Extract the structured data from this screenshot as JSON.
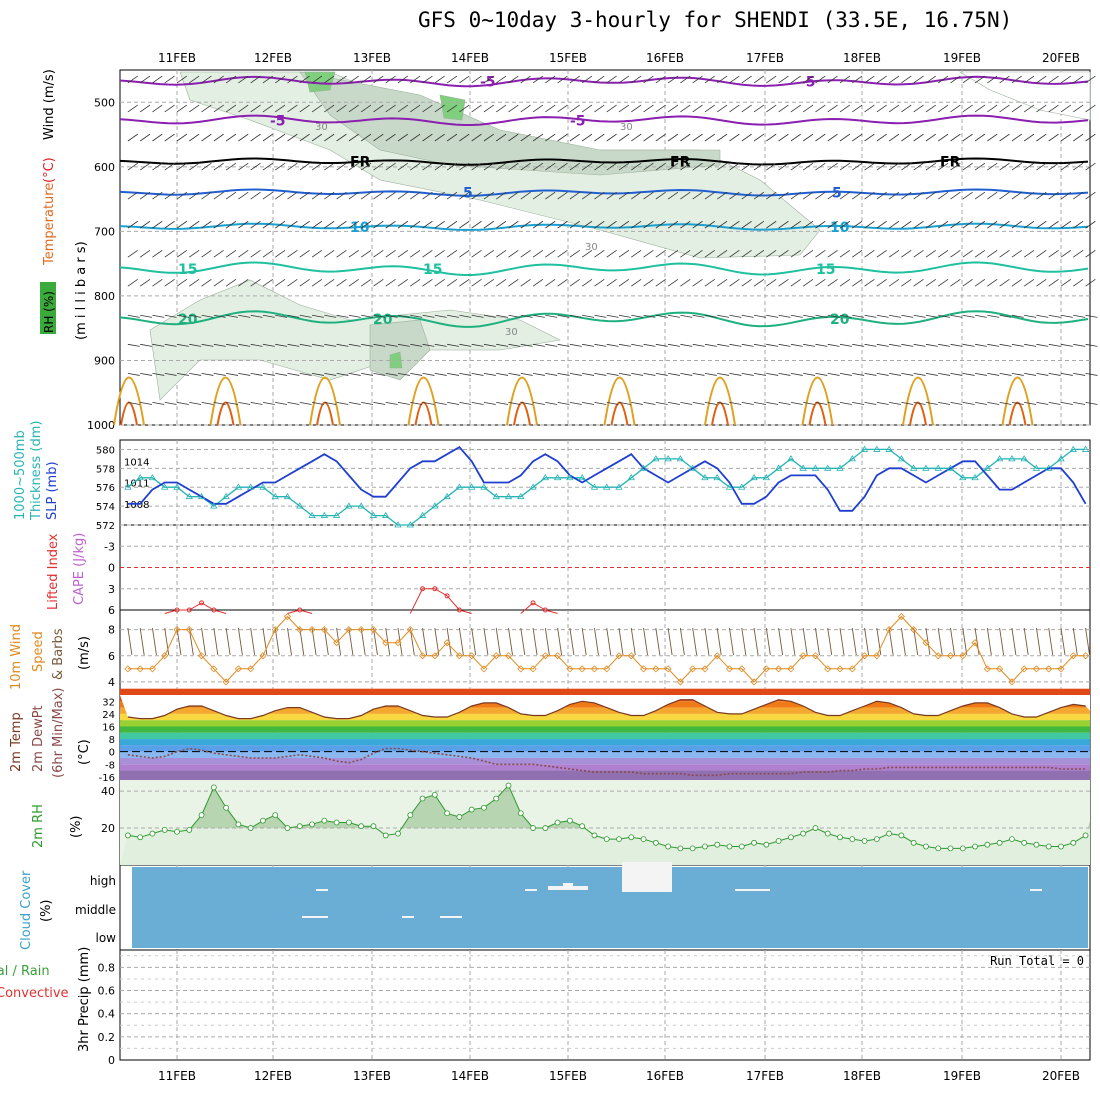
{
  "title": "GFS 0~10day 3-hourly for SHENDI (33.5E, 16.75N)",
  "date_labels": [
    "11FEB",
    "12FEB",
    "13FEB",
    "14FEB",
    "15FEB",
    "16FEB",
    "17FEB",
    "18FEB",
    "19FEB",
    "20FEB"
  ],
  "colors": {
    "bg": "#ffffff",
    "grid": "#aaaaaa",
    "cloud": "#6aaed6",
    "slp": "#1f3fcf",
    "thickness": "#27b4b4",
    "rh": "#2e9a2e",
    "wind": "#e08a1e",
    "li": "#e03030",
    "dewpt": "#8a4a4a"
  },
  "panels": {
    "upper": {
      "labels": {
        "rh": "RH (%)",
        "temperature": "Temperature",
        "temp_unit": "(°C)",
        "wind": "Wind (m/s)",
        "millibars": "(m i l l i b a r s)"
      },
      "ticks": [
        "500",
        "600",
        "700",
        "800",
        "900",
        "1000"
      ],
      "contours": {
        "purple": [
          {
            "text": "-5"
          },
          {
            "text": "-5"
          }
        ],
        "fr": [
          {
            "text": "FR"
          },
          {
            "text": "FR"
          },
          {
            "text": "FR"
          }
        ],
        "blue": [
          {
            "text": "5"
          },
          {
            "text": "5"
          }
        ],
        "c10": [
          {
            "text": "10"
          },
          {
            "text": "10"
          }
        ],
        "c15": [
          {
            "text": "15"
          },
          {
            "text": "15"
          },
          {
            "text": "15"
          }
        ],
        "c20": [
          {
            "text": "20"
          },
          {
            "text": "20"
          },
          {
            "text": "20"
          }
        ],
        "rh30": [
          {
            "text": "30"
          },
          {
            "text": "30"
          },
          {
            "text": "30"
          },
          {
            "text": "30"
          }
        ]
      }
    },
    "slp": {
      "labels": {
        "thickness": "1000~500mb",
        "thickness2": "Thickness (dm)",
        "slp": "SLP (mb)"
      },
      "ticks_left": [
        "580",
        "578",
        "576",
        "574",
        "572"
      ],
      "ticks_right": [
        "1014",
        "1011",
        "1008"
      ]
    },
    "cape": {
      "labels": {
        "li": "Lifted Index",
        "cape": "CAPE (J/kg)"
      },
      "ticks": [
        "-3",
        "0",
        "3",
        "6"
      ]
    },
    "wind10": {
      "labels": {
        "a": "10m Wind",
        "b": "Speed",
        "c": "& Barbs",
        "unit": "(m/s)"
      },
      "ticks": [
        "8",
        "6",
        "4"
      ]
    },
    "temp2m": {
      "labels": {
        "a": "2m Temp",
        "b": "2m DewPt",
        "c": "(6hr Min/Max)",
        "unit": "(°C)"
      },
      "ticks": [
        "32",
        "24",
        "16",
        "8",
        "0",
        "-8",
        "-16"
      ]
    },
    "rh2m": {
      "labels": {
        "a": "2m RH",
        "unit": "(%)"
      },
      "ticks": [
        "40",
        "20"
      ]
    },
    "cloud": {
      "labels": {
        "a": "Cloud Cover",
        "unit": "(%)"
      },
      "ticks": [
        "high",
        "middle",
        "low"
      ]
    },
    "precip": {
      "labels": {
        "a": "Total / Rain",
        "b": "Convective",
        "c": "3hr Precip (mm)"
      },
      "ticks": [
        "0.8",
        "0.6",
        "0.4",
        "0.2",
        "0"
      ],
      "run_total": "Run Total = 0"
    }
  },
  "chart_data": [
    {
      "type": "line",
      "name": "slp",
      "x_start": "10FEB 12Z",
      "step_hours": 3,
      "values": [
        1008,
        1008,
        1010,
        1011,
        1011,
        1010,
        1009,
        1008,
        1008,
        1009,
        1010,
        1011,
        1011,
        1012,
        1013,
        1014,
        1015,
        1014,
        1012,
        1010,
        1009,
        1009,
        1011,
        1013,
        1014,
        1014,
        1015,
        1016,
        1014,
        1011,
        1011,
        1011,
        1012,
        1014,
        1015,
        1014,
        1012,
        1011,
        1012,
        1013,
        1014,
        1015,
        1013,
        1012,
        1011,
        1012,
        1013,
        1014,
        1013,
        1011,
        1008,
        1008,
        1009,
        1011,
        1012,
        1012,
        1012,
        1010,
        1007,
        1007,
        1009,
        1012,
        1013,
        1013,
        1012,
        1011,
        1012,
        1013,
        1014,
        1014,
        1012,
        1010,
        1010,
        1011,
        1012,
        1013,
        1013,
        1011,
        1008,
        1007,
        1008,
        1009,
        1010
      ]
    },
    {
      "type": "line",
      "name": "thickness",
      "unit": "dm",
      "values": [
        576,
        577,
        577,
        576,
        576,
        575,
        575,
        574,
        575,
        576,
        576,
        576,
        575,
        575,
        574,
        573,
        573,
        573,
        574,
        574,
        573,
        573,
        572,
        572,
        573,
        574,
        575,
        576,
        576,
        576,
        575,
        575,
        575,
        576,
        577,
        577,
        577,
        577,
        576,
        576,
        576,
        577,
        578,
        579,
        579,
        579,
        578,
        577,
        577,
        576,
        576,
        577,
        577,
        578,
        579,
        578,
        578,
        578,
        578,
        579,
        580,
        580,
        580,
        579,
        578,
        578,
        578,
        578,
        577,
        577,
        578,
        579,
        579,
        579,
        578,
        578,
        579,
        580,
        580,
        580,
        580,
        579,
        579
      ]
    },
    {
      "type": "line",
      "name": "lifted_index",
      "values": [
        7,
        7,
        7,
        7,
        6,
        6,
        5,
        6,
        7,
        7,
        7,
        7,
        7,
        7,
        6,
        7,
        7,
        7,
        7,
        7,
        7,
        7,
        7,
        7,
        3,
        3,
        4,
        6,
        7,
        7,
        7,
        7,
        7,
        5,
        6,
        7,
        7,
        7,
        7,
        7,
        7,
        7,
        7,
        7,
        7,
        7,
        7,
        7,
        7,
        7,
        7,
        7,
        7,
        7,
        7,
        7,
        7,
        7,
        7,
        7,
        7,
        7,
        7,
        7,
        7,
        7,
        7,
        7,
        7,
        7,
        7,
        7,
        7,
        7,
        7,
        7,
        7,
        7,
        7,
        7,
        7,
        7,
        7
      ]
    },
    {
      "type": "line",
      "name": "wind10m_speed",
      "unit": "m/s",
      "values": [
        5,
        5,
        5,
        6,
        8,
        8,
        6,
        5,
        4,
        5,
        5,
        6,
        8,
        9,
        8,
        8,
        8,
        7,
        8,
        8,
        8,
        7,
        7,
        8,
        6,
        6,
        7,
        6,
        6,
        5,
        6,
        6,
        5,
        5,
        6,
        6,
        5,
        5,
        5,
        5,
        6,
        6,
        5,
        5,
        5,
        4,
        5,
        5,
        6,
        5,
        5,
        4,
        5,
        5,
        5,
        6,
        6,
        5,
        5,
        5,
        6,
        6,
        8,
        9,
        8,
        7,
        6,
        6,
        6,
        7,
        5,
        5,
        4,
        5,
        5,
        5,
        5,
        6,
        6,
        7,
        7,
        6,
        6
      ]
    },
    {
      "type": "line",
      "name": "temp2m",
      "unit": "°C",
      "values": [
        22,
        21,
        21,
        23,
        27,
        29,
        29,
        26,
        23,
        21,
        21,
        23,
        26,
        28,
        28,
        25,
        22,
        21,
        21,
        23,
        27,
        29,
        29,
        26,
        23,
        22,
        22,
        25,
        29,
        31,
        31,
        28,
        24,
        23,
        23,
        26,
        30,
        32,
        31,
        28,
        25,
        23,
        23,
        26,
        30,
        33,
        33,
        29,
        25,
        24,
        24,
        27,
        30,
        33,
        32,
        29,
        25,
        23,
        23,
        26,
        29,
        32,
        31,
        28,
        24,
        23,
        23,
        26,
        29,
        31,
        31,
        28,
        24,
        22,
        22,
        25,
        28,
        30,
        29,
        26,
        23,
        21,
        21
      ]
    },
    {
      "type": "line",
      "name": "dewpt2m",
      "unit": "°C",
      "values": [
        -2,
        -3,
        -4,
        -3,
        0,
        2,
        1,
        -1,
        -2,
        -3,
        -4,
        -4,
        -4,
        -3,
        -2,
        -3,
        -4,
        -6,
        -7,
        -5,
        -1,
        2,
        2,
        1,
        0,
        -1,
        -2,
        -3,
        -4,
        -6,
        -8,
        -8,
        -8,
        -8,
        -9,
        -10,
        -11,
        -12,
        -13,
        -13,
        -13,
        -13,
        -14,
        -14,
        -14,
        -14,
        -15,
        -15,
        -15,
        -14,
        -14,
        -14,
        -14,
        -14,
        -14,
        -13,
        -13,
        -13,
        -12,
        -12,
        -11,
        -11,
        -10,
        -10,
        -10,
        -10,
        -10,
        -10,
        -10,
        -10,
        -10,
        -10,
        -10,
        -10,
        -10,
        -10,
        -11,
        -11,
        -11,
        -11,
        -10,
        -8,
        -4
      ]
    },
    {
      "type": "area",
      "name": "rh2m",
      "unit": "%",
      "values": [
        16,
        15,
        17,
        19,
        18,
        19,
        27,
        42,
        31,
        22,
        20,
        24,
        27,
        20,
        21,
        22,
        24,
        23,
        23,
        21,
        21,
        16,
        17,
        27,
        36,
        38,
        28,
        26,
        30,
        31,
        36,
        43,
        28,
        20,
        20,
        23,
        24,
        21,
        16,
        14,
        14,
        15,
        14,
        12,
        10,
        9,
        9,
        10,
        11,
        10,
        10,
        12,
        11,
        13,
        15,
        17,
        20,
        17,
        15,
        14,
        13,
        14,
        17,
        16,
        12,
        10,
        9,
        9,
        9,
        10,
        11,
        12,
        14,
        12,
        11,
        10,
        10,
        12,
        16,
        24,
        30,
        34,
        33
      ]
    }
  ]
}
